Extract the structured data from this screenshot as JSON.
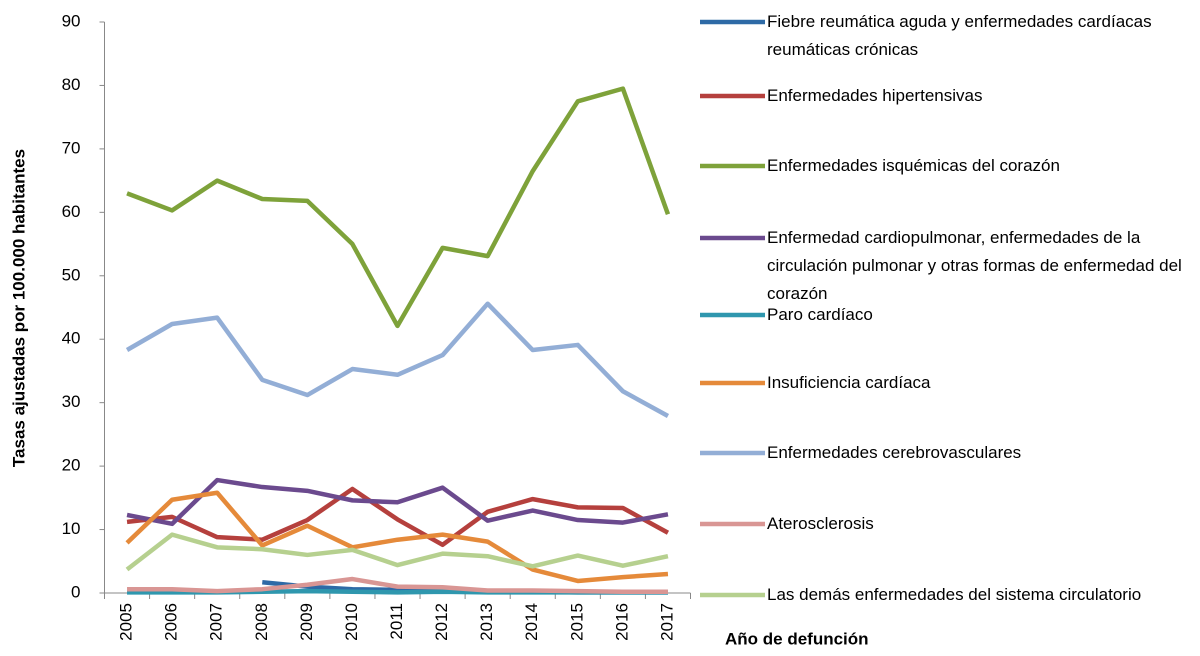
{
  "chart_data": {
    "type": "line",
    "y_label": "Tasas ajustadas por 100.000 habitantes",
    "x_label": "Año de defunción",
    "categories": [
      "2005",
      "2006",
      "2007",
      "2008",
      "2009",
      "2010",
      "2011",
      "2012",
      "2013",
      "2014",
      "2015",
      "2016",
      "2017"
    ],
    "ylim": [
      0,
      90
    ],
    "yticks": [
      0,
      10,
      20,
      30,
      40,
      50,
      60,
      70,
      80,
      90
    ],
    "series": [
      {
        "name": "Fiebre reumática aguda y enfermedades cardíacas reumáticas crónicas",
        "color": "#2e6aa6",
        "values": [
          null,
          null,
          null,
          1.7,
          1.0,
          0.6,
          0.5,
          0.3,
          0.2,
          0.2,
          0.1,
          0.1,
          0.1
        ]
      },
      {
        "name": "Enfermedades hipertensivas",
        "color": "#b5403d",
        "values": [
          11.2,
          12,
          8.8,
          8.4,
          11.5,
          16.4,
          11.6,
          7.6,
          12.8,
          14.8,
          13.5,
          13.4,
          9.5
        ]
      },
      {
        "name": "Enfermedades isquémicas del corazón",
        "color": "#7ea23a",
        "values": [
          63,
          60.3,
          65,
          62.1,
          61.8,
          55,
          42.1,
          54.4,
          53.1,
          66.5,
          77.5,
          79.5,
          59.7
        ]
      },
      {
        "name": "Enfermedad cardiopulmonar, enfermedades de la circulación pulmonar y otras formas de enfermedad del corazón",
        "color": "#6b4a8e",
        "values": [
          12.3,
          10.9,
          17.8,
          16.7,
          16.1,
          14.6,
          14.3,
          16.6,
          11.4,
          13,
          11.5,
          11.1,
          12.4
        ]
      },
      {
        "name": "Paro cardíaco",
        "color": "#2f97ae",
        "values": [
          0.1,
          0.1,
          0.1,
          0.2,
          0.3,
          0.2,
          0.1,
          0.2,
          0.1,
          0.1,
          0.1,
          0.1,
          0.1
        ]
      },
      {
        "name": "Insuficiencia cardíaca",
        "color": "#e58a3a",
        "values": [
          7.9,
          14.7,
          15.8,
          7.5,
          10.6,
          7.2,
          8.4,
          9.2,
          8.1,
          3.7,
          1.9,
          2.5,
          3.0
        ]
      },
      {
        "name": "Enfermedades cerebrovasculares",
        "color": "#93aed6",
        "values": [
          38.3,
          42.4,
          43.4,
          33.6,
          31.2,
          35.3,
          34.4,
          37.5,
          45.6,
          38.3,
          39.1,
          31.8,
          27.9
        ]
      },
      {
        "name": "Aterosclerosis",
        "color": "#d99694",
        "values": [
          0.6,
          0.6,
          0.3,
          0.6,
          1.3,
          2.2,
          1.0,
          0.9,
          0.4,
          0.4,
          0.3,
          0.2,
          0.2
        ]
      },
      {
        "name": "Las demás enfermedades del sistema circulatorio",
        "color": "#b6d08f",
        "values": [
          3.7,
          9.2,
          7.2,
          6.9,
          6.0,
          6.8,
          4.4,
          6.2,
          5.8,
          4.2,
          5.9,
          4.3,
          5.8
        ]
      }
    ]
  }
}
